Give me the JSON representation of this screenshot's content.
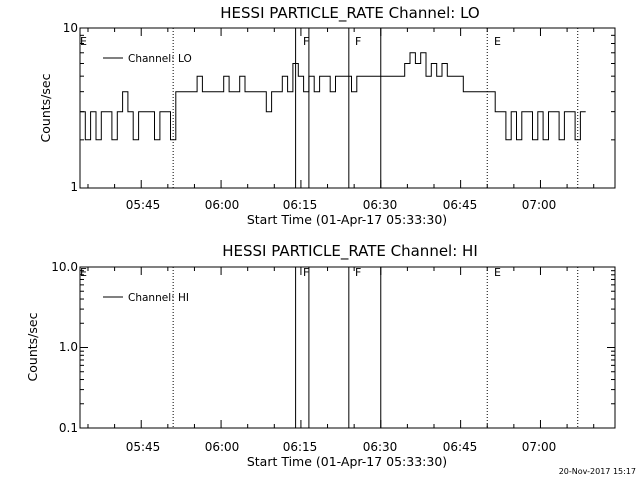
{
  "timestamp": "20-Nov-2017 15:17",
  "chart_data": [
    {
      "type": "line",
      "title": "HESSI PARTICLE_RATE Channel: LO",
      "xlabel": "Start Time (01-Apr-17 05:33:30)",
      "ylabel": "Counts/sec",
      "yscale": "log",
      "ylim": [
        1,
        10
      ],
      "ytick_labels": [
        "1",
        "10"
      ],
      "xlim": [
        "05:33:30",
        "07:14:00"
      ],
      "xtick_labels": [
        "05:45",
        "06:00",
        "06:15",
        "06:30",
        "06:45",
        "07:00"
      ],
      "legend": {
        "position": "top-left",
        "entries": [
          "Channel: LO"
        ]
      },
      "event_markers": [
        {
          "label": "E",
          "time": "05:33:30",
          "style": "dotted"
        },
        {
          "label": "",
          "time": "05:51:00",
          "style": "dotted"
        },
        {
          "label": "F",
          "time": "06:14:00",
          "style": "solid"
        },
        {
          "label": "",
          "time": "06:16:30",
          "style": "solid"
        },
        {
          "label": "F",
          "time": "06:24:00",
          "style": "solid"
        },
        {
          "label": "",
          "time": "06:30:00",
          "style": "solid"
        },
        {
          "label": "E",
          "time": "06:50:00",
          "style": "dotted"
        },
        {
          "label": "",
          "time": "07:07:00",
          "style": "dotted"
        }
      ],
      "series": [
        {
          "name": "Channel: LO",
          "x": [
            "05:33:30",
            "05:34:30",
            "05:35:30",
            "05:36:30",
            "05:37:30",
            "05:38:30",
            "05:39:30",
            "05:40:30",
            "05:41:30",
            "05:42:30",
            "05:43:30",
            "05:44:30",
            "05:45:30",
            "05:46:30",
            "05:47:30",
            "05:48:30",
            "05:49:30",
            "05:50:30",
            "05:51:30",
            "05:52:30",
            "05:53:30",
            "05:54:30",
            "05:55:30",
            "05:56:30",
            "05:57:30",
            "05:58:30",
            "05:59:30",
            "06:00:30",
            "06:01:30",
            "06:02:30",
            "06:03:30",
            "06:04:30",
            "06:05:30",
            "06:06:30",
            "06:07:30",
            "06:08:30",
            "06:09:30",
            "06:10:30",
            "06:11:30",
            "06:12:30",
            "06:13:30",
            "06:14:30",
            "06:15:30",
            "06:16:30",
            "06:17:30",
            "06:18:30",
            "06:19:30",
            "06:20:30",
            "06:21:30",
            "06:22:30",
            "06:23:30",
            "06:24:30",
            "06:25:30",
            "06:26:30",
            "06:27:30",
            "06:28:30",
            "06:29:30",
            "06:30:30",
            "06:31:30",
            "06:32:30",
            "06:33:30",
            "06:34:30",
            "06:35:30",
            "06:36:30",
            "06:37:30",
            "06:38:30",
            "06:39:30",
            "06:40:30",
            "06:41:30",
            "06:42:30",
            "06:43:30",
            "06:44:30",
            "06:45:30",
            "06:46:30",
            "06:47:30",
            "06:48:30",
            "06:49:30",
            "06:50:30",
            "06:51:30",
            "06:52:30",
            "06:53:30",
            "06:54:30",
            "06:55:30",
            "06:56:30",
            "06:57:30",
            "06:58:30",
            "06:59:30",
            "07:00:30",
            "07:01:30",
            "07:02:30",
            "07:03:30",
            "07:04:30",
            "07:05:30",
            "07:06:30",
            "07:07:30"
          ],
          "values": [
            3,
            2,
            3,
            2,
            3,
            3,
            2,
            3,
            4,
            3,
            2,
            3,
            3,
            3,
            2,
            3,
            3,
            2,
            4,
            4,
            4,
            4,
            5,
            4,
            4,
            4,
            4,
            5,
            4,
            4,
            5,
            4,
            4,
            4,
            4,
            3,
            4,
            4,
            5,
            4,
            6,
            5,
            4,
            5,
            4,
            5,
            5,
            4,
            5,
            5,
            5,
            4,
            5,
            5,
            5,
            5,
            5,
            5,
            5,
            5,
            5,
            6,
            7,
            6,
            7,
            5,
            6,
            5,
            6,
            5,
            5,
            5,
            4,
            4,
            4,
            4,
            4,
            4,
            3,
            3,
            2,
            3,
            2,
            3,
            3,
            2,
            3,
            2,
            3,
            3,
            2,
            3,
            3,
            2,
            3
          ]
        }
      ]
    },
    {
      "type": "line",
      "title": "HESSI PARTICLE_RATE Channel: HI",
      "xlabel": "Start Time (01-Apr-17 05:33:30)",
      "ylabel": "Counts/sec",
      "yscale": "log",
      "ylim": [
        0.1,
        10
      ],
      "ytick_labels": [
        "0.1",
        "1.0",
        "10.0"
      ],
      "xlim": [
        "05:33:30",
        "07:14:00"
      ],
      "xtick_labels": [
        "05:45",
        "06:00",
        "06:15",
        "06:30",
        "06:45",
        "07:00"
      ],
      "legend": {
        "position": "top-left",
        "entries": [
          "Channel: HI"
        ]
      },
      "event_markers": [
        {
          "label": "E",
          "time": "05:33:30",
          "style": "dotted"
        },
        {
          "label": "",
          "time": "05:51:00",
          "style": "dotted"
        },
        {
          "label": "F",
          "time": "06:14:00",
          "style": "solid"
        },
        {
          "label": "",
          "time": "06:16:30",
          "style": "solid"
        },
        {
          "label": "F",
          "time": "06:24:00",
          "style": "solid"
        },
        {
          "label": "",
          "time": "06:30:00",
          "style": "solid"
        },
        {
          "label": "E",
          "time": "06:50:00",
          "style": "dotted"
        },
        {
          "label": "",
          "time": "07:07:00",
          "style": "dotted"
        }
      ],
      "series": [
        {
          "name": "Channel: HI",
          "x": [],
          "values": []
        }
      ]
    }
  ]
}
